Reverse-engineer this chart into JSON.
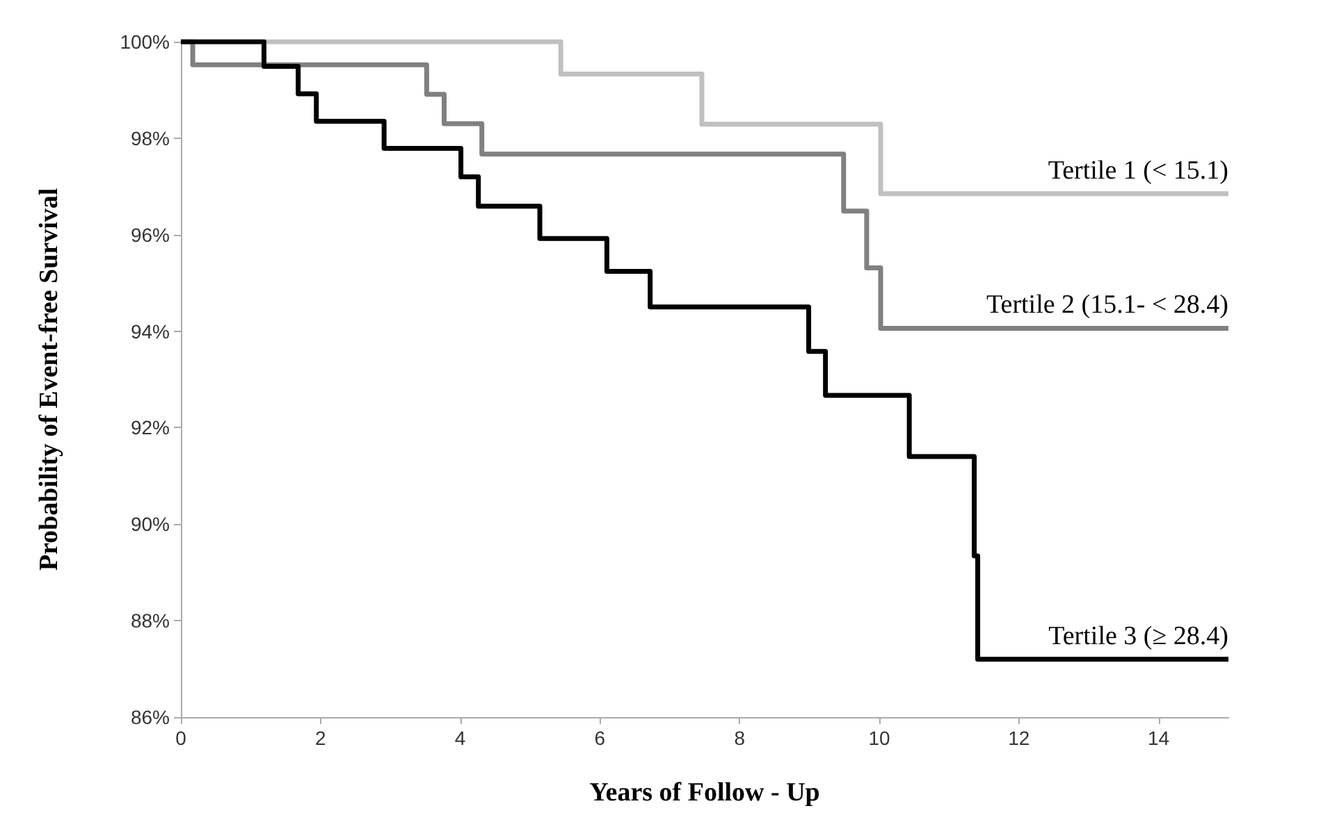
{
  "chart_data": {
    "type": "step",
    "xlabel": "Years of Follow - Up",
    "ylabel": "Probability of Event-free Survival",
    "xlim": [
      0,
      15
    ],
    "xticks": [
      0,
      2,
      4,
      6,
      8,
      10,
      12,
      14
    ],
    "ylim": [
      86,
      100
    ],
    "yticks": [
      {
        "value": 86,
        "label": "86%"
      },
      {
        "value": 88,
        "label": "88%"
      },
      {
        "value": 90,
        "label": "90%"
      },
      {
        "value": 92,
        "label": "92%"
      },
      {
        "value": 94,
        "label": "94%"
      },
      {
        "value": 96,
        "label": "96%"
      },
      {
        "value": 98,
        "label": "98%"
      },
      {
        "value": 100,
        "label": "100%"
      }
    ],
    "grid": false,
    "marker": "none",
    "line_style": "solid",
    "series": [
      {
        "name": "Tertile 1 (< 15.1)",
        "color": "#c0c0c0",
        "x": [
          0,
          5.44,
          7.46,
          10.02,
          15
        ],
        "values": [
          100,
          99.33,
          98.29,
          96.85,
          96.85
        ]
      },
      {
        "name": "Tertile 2 (15.1- < 28.4)",
        "color": "#808080",
        "x": [
          0,
          0.17,
          3.52,
          3.77,
          4.31,
          9.49,
          9.82,
          10.02,
          15
        ],
        "values": [
          100,
          99.52,
          98.91,
          98.3,
          97.67,
          96.49,
          95.31,
          94.06,
          94.06
        ]
      },
      {
        "name": "Tertile 3 (≥ 28.4)",
        "color": "#000000",
        "x": [
          0,
          1.19,
          1.68,
          1.94,
          2.91,
          4.01,
          4.26,
          5.14,
          6.1,
          6.72,
          8.99,
          9.23,
          10.43,
          11.36,
          11.41,
          15
        ],
        "values": [
          100,
          99.49,
          98.92,
          98.35,
          97.79,
          97.2,
          96.59,
          95.92,
          95.24,
          94.5,
          93.58,
          92.67,
          91.4,
          89.34,
          87.2,
          87.2
        ]
      }
    ]
  }
}
